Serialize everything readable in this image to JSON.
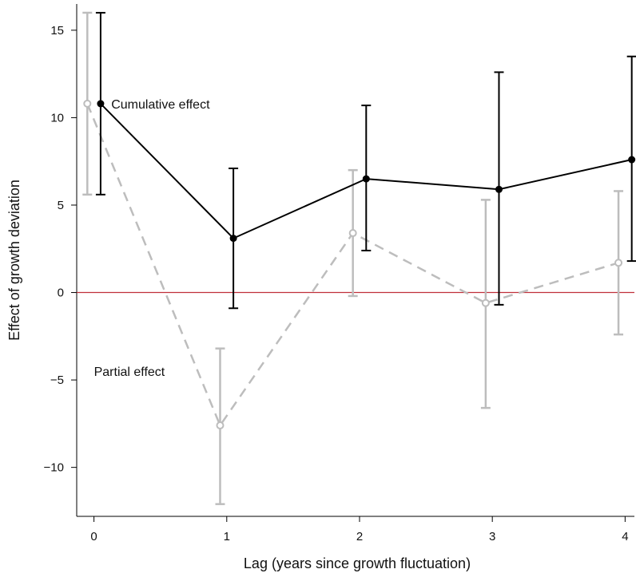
{
  "chart_data": {
    "type": "line",
    "xlabel": "Lag (years since growth fluctuation)",
    "ylabel": "Effect of growth deviation",
    "x": [
      0,
      1,
      2,
      3,
      4
    ],
    "xlim": [
      -0.13,
      4.07
    ],
    "ylim": [
      -12.8,
      16.5
    ],
    "xticks": [
      0,
      1,
      2,
      3,
      4
    ],
    "yticks": [
      -10,
      -5,
      0,
      5,
      10,
      15
    ],
    "ytick_labels": [
      "−10",
      "−5",
      "0",
      "5",
      "10",
      "15"
    ],
    "reference_line": {
      "y": 0,
      "color": "#c0303a"
    },
    "series": [
      {
        "name": "Cumulative effect",
        "style": "solid",
        "color": "#000000",
        "x_offset": 0.05,
        "values": [
          10.8,
          3.1,
          6.5,
          5.9,
          7.6
        ],
        "ci_low": [
          5.6,
          -0.9,
          2.4,
          -0.7,
          1.8
        ],
        "ci_high": [
          16.0,
          7.1,
          10.7,
          12.6,
          13.5
        ]
      },
      {
        "name": "Partial effect",
        "style": "dashed",
        "color": "#bdbdbd",
        "x_offset": -0.05,
        "values": [
          10.8,
          -7.6,
          3.4,
          -0.6,
          1.7
        ],
        "ci_low": [
          5.6,
          -12.1,
          -0.2,
          -6.6,
          -2.4
        ],
        "ci_high": [
          16.0,
          -3.2,
          7.0,
          5.3,
          5.8
        ]
      }
    ],
    "annotations": [
      {
        "text": "Cumulative effect",
        "x": 0.13,
        "y": 10.8
      },
      {
        "text": "Partial effect",
        "x": 0.0,
        "y": -4.5
      }
    ]
  }
}
